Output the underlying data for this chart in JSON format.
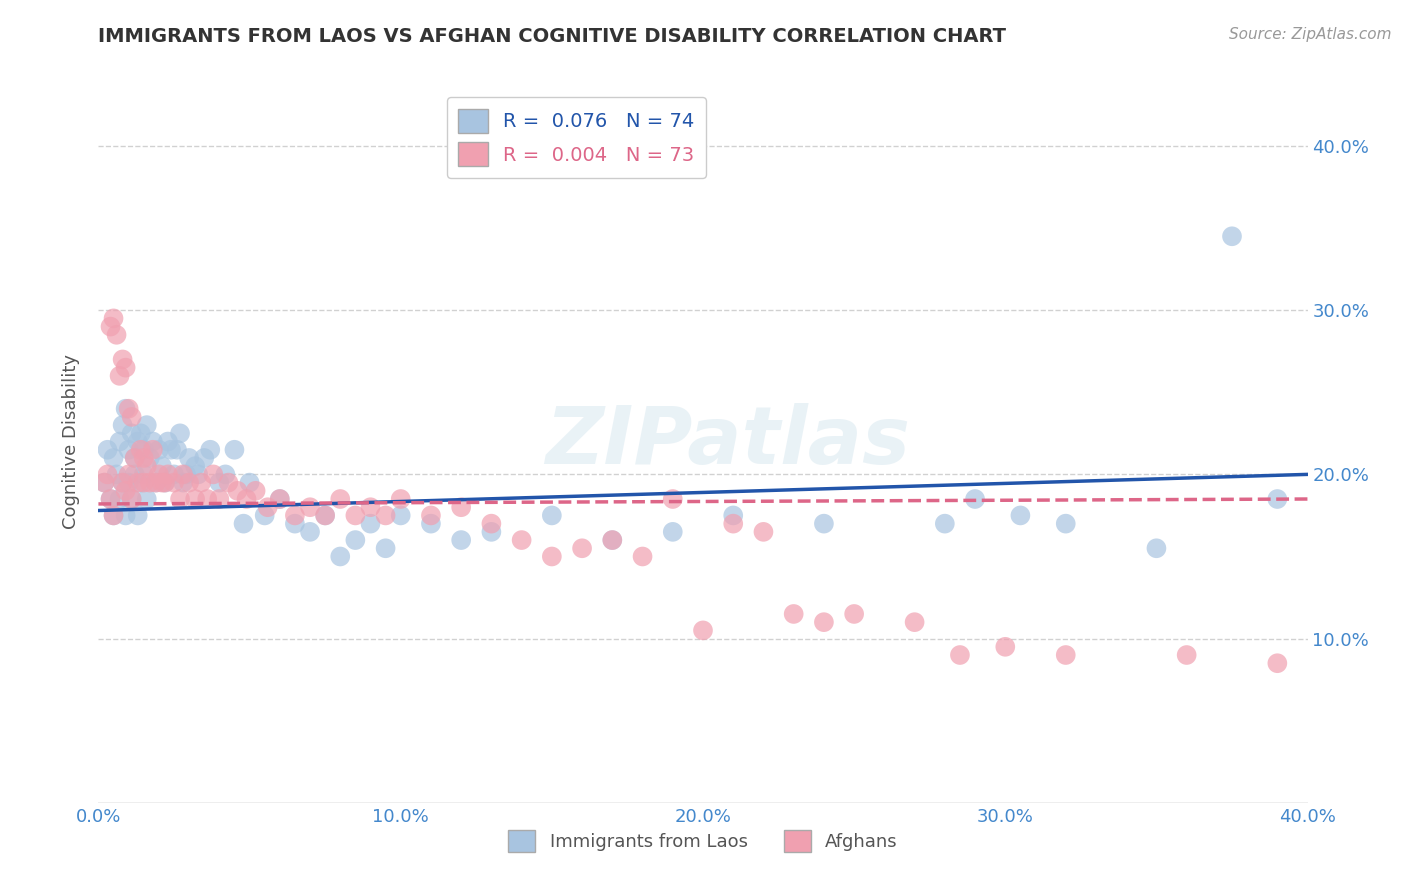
{
  "title": "IMMIGRANTS FROM LAOS VS AFGHAN COGNITIVE DISABILITY CORRELATION CHART",
  "source_text": "Source: ZipAtlas.com",
  "ylabel": "Cognitive Disability",
  "xlabel": "",
  "xlim": [
    0.0,
    0.4
  ],
  "ylim": [
    0.0,
    0.44
  ],
  "xtick_labels": [
    "0.0%",
    "10.0%",
    "20.0%",
    "30.0%",
    "40.0%"
  ],
  "xtick_values": [
    0.0,
    0.1,
    0.2,
    0.3,
    0.4
  ],
  "ytick_labels": [
    "10.0%",
    "20.0%",
    "30.0%",
    "40.0%"
  ],
  "ytick_values": [
    0.1,
    0.2,
    0.3,
    0.4
  ],
  "legend_labels": [
    "Immigrants from Laos",
    "Afghans"
  ],
  "laos_R": 0.076,
  "laos_N": 74,
  "afghan_R": 0.004,
  "afghan_N": 73,
  "laos_color": "#a8c4e0",
  "afghan_color": "#f0a0b0",
  "laos_line_color": "#2255aa",
  "afghan_line_color": "#dd6688",
  "background_color": "#ffffff",
  "grid_color": "#cccccc",
  "title_color": "#333333",
  "axis_label_color": "#555555",
  "tick_label_color": "#4488cc",
  "watermark_text": "ZIPatlas",
  "laos_line_start_y": 0.178,
  "laos_line_end_y": 0.2,
  "afghan_line_start_y": 0.182,
  "afghan_line_end_y": 0.185,
  "laos_x": [
    0.002,
    0.003,
    0.004,
    0.005,
    0.005,
    0.006,
    0.007,
    0.007,
    0.008,
    0.008,
    0.009,
    0.009,
    0.01,
    0.01,
    0.011,
    0.011,
    0.012,
    0.012,
    0.013,
    0.013,
    0.014,
    0.014,
    0.015,
    0.015,
    0.016,
    0.016,
    0.017,
    0.018,
    0.019,
    0.02,
    0.021,
    0.022,
    0.023,
    0.024,
    0.025,
    0.026,
    0.027,
    0.028,
    0.029,
    0.03,
    0.032,
    0.033,
    0.035,
    0.037,
    0.04,
    0.042,
    0.045,
    0.048,
    0.05,
    0.055,
    0.06,
    0.065,
    0.07,
    0.075,
    0.08,
    0.085,
    0.09,
    0.095,
    0.1,
    0.11,
    0.12,
    0.13,
    0.15,
    0.17,
    0.19,
    0.21,
    0.24,
    0.28,
    0.29,
    0.305,
    0.32,
    0.35,
    0.375,
    0.39
  ],
  "laos_y": [
    0.195,
    0.215,
    0.185,
    0.21,
    0.175,
    0.2,
    0.22,
    0.185,
    0.23,
    0.195,
    0.24,
    0.175,
    0.215,
    0.195,
    0.225,
    0.185,
    0.21,
    0.2,
    0.22,
    0.175,
    0.225,
    0.195,
    0.215,
    0.2,
    0.23,
    0.185,
    0.21,
    0.22,
    0.195,
    0.215,
    0.205,
    0.195,
    0.22,
    0.215,
    0.2,
    0.215,
    0.225,
    0.195,
    0.2,
    0.21,
    0.205,
    0.2,
    0.21,
    0.215,
    0.195,
    0.2,
    0.215,
    0.17,
    0.195,
    0.175,
    0.185,
    0.17,
    0.165,
    0.175,
    0.15,
    0.16,
    0.17,
    0.155,
    0.175,
    0.17,
    0.16,
    0.165,
    0.175,
    0.16,
    0.165,
    0.175,
    0.17,
    0.17,
    0.185,
    0.175,
    0.17,
    0.155,
    0.345,
    0.185
  ],
  "afghan_x": [
    0.002,
    0.003,
    0.004,
    0.004,
    0.005,
    0.005,
    0.006,
    0.007,
    0.008,
    0.008,
    0.009,
    0.009,
    0.01,
    0.01,
    0.011,
    0.011,
    0.012,
    0.013,
    0.014,
    0.015,
    0.015,
    0.016,
    0.017,
    0.018,
    0.019,
    0.02,
    0.021,
    0.022,
    0.023,
    0.025,
    0.027,
    0.028,
    0.03,
    0.032,
    0.034,
    0.036,
    0.038,
    0.04,
    0.043,
    0.046,
    0.049,
    0.052,
    0.056,
    0.06,
    0.065,
    0.07,
    0.075,
    0.08,
    0.085,
    0.09,
    0.095,
    0.1,
    0.11,
    0.12,
    0.13,
    0.14,
    0.15,
    0.16,
    0.17,
    0.18,
    0.19,
    0.2,
    0.21,
    0.22,
    0.23,
    0.24,
    0.25,
    0.27,
    0.285,
    0.3,
    0.32,
    0.36,
    0.39
  ],
  "afghan_y": [
    0.195,
    0.2,
    0.29,
    0.185,
    0.295,
    0.175,
    0.285,
    0.26,
    0.27,
    0.195,
    0.265,
    0.19,
    0.24,
    0.2,
    0.235,
    0.185,
    0.21,
    0.195,
    0.215,
    0.21,
    0.195,
    0.205,
    0.195,
    0.215,
    0.195,
    0.2,
    0.195,
    0.195,
    0.2,
    0.195,
    0.185,
    0.2,
    0.195,
    0.185,
    0.195,
    0.185,
    0.2,
    0.185,
    0.195,
    0.19,
    0.185,
    0.19,
    0.18,
    0.185,
    0.175,
    0.18,
    0.175,
    0.185,
    0.175,
    0.18,
    0.175,
    0.185,
    0.175,
    0.18,
    0.17,
    0.16,
    0.15,
    0.155,
    0.16,
    0.15,
    0.185,
    0.105,
    0.17,
    0.165,
    0.115,
    0.11,
    0.115,
    0.11,
    0.09,
    0.095,
    0.09,
    0.09,
    0.085
  ]
}
